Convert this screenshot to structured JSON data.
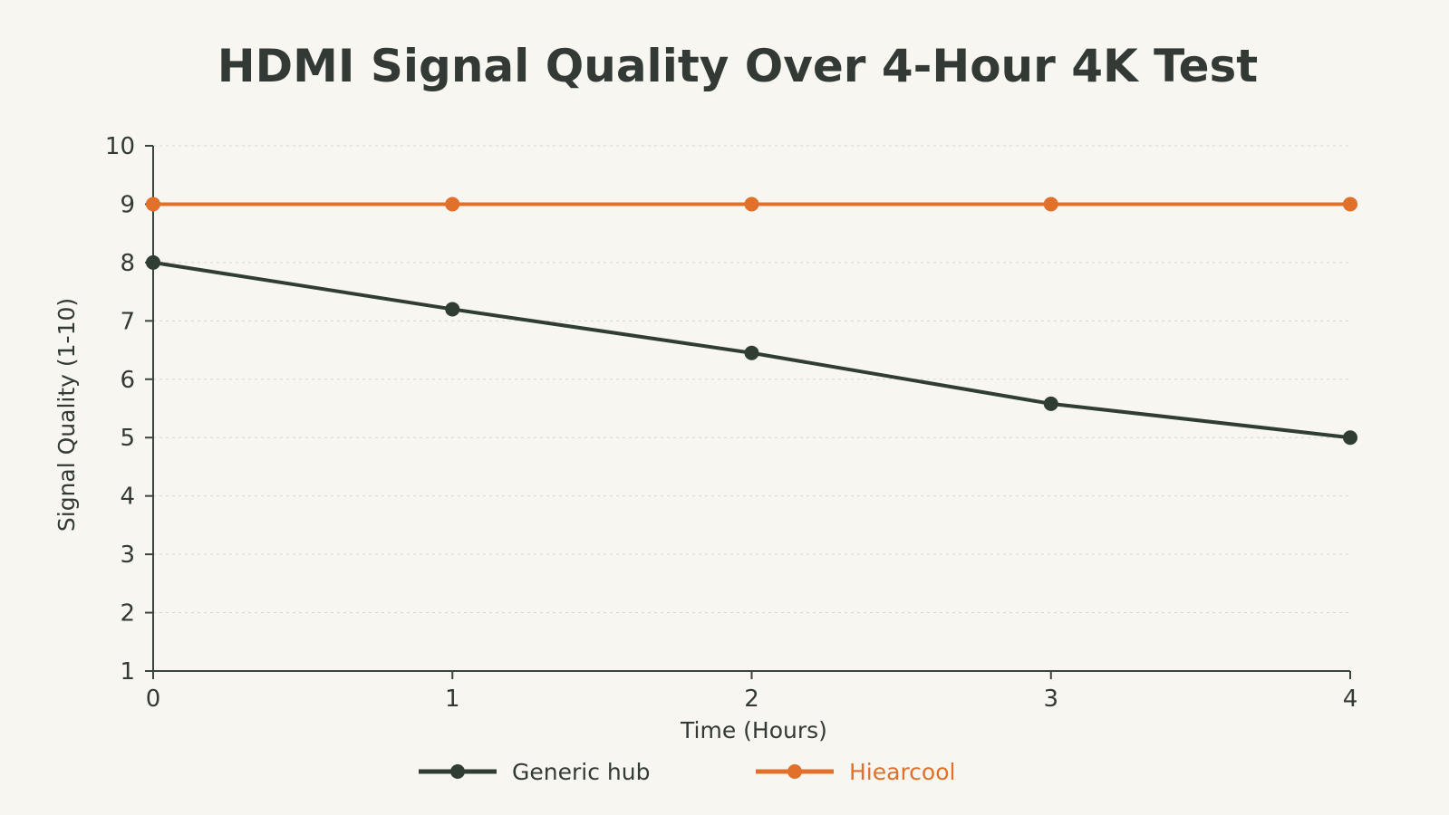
{
  "chart_data": {
    "type": "line",
    "title": "HDMI Signal Quality Over 4-Hour 4K Test",
    "xlabel": "Time (Hours)",
    "ylabel": "Signal Quality (1-10)",
    "x": [
      0,
      1,
      2,
      3,
      4
    ],
    "xlim": [
      0,
      4
    ],
    "ylim": [
      1,
      10
    ],
    "yticks": [
      1,
      2,
      3,
      4,
      5,
      6,
      7,
      8,
      9,
      10
    ],
    "grid": true,
    "legend_position": "bottom",
    "series": [
      {
        "name": "Generic hub",
        "values": [
          8.0,
          7.2,
          6.45,
          5.58,
          5.0
        ],
        "color": "#2f3d33"
      },
      {
        "name": "Hiearcool",
        "values": [
          9.0,
          9.0,
          9.0,
          9.0,
          9.0
        ],
        "color": "#e0702a"
      }
    ],
    "colors": {
      "background": "#f8f6f1",
      "text": "#333a35",
      "axis": "#3a443c",
      "grid": "#d6d6d2"
    }
  }
}
